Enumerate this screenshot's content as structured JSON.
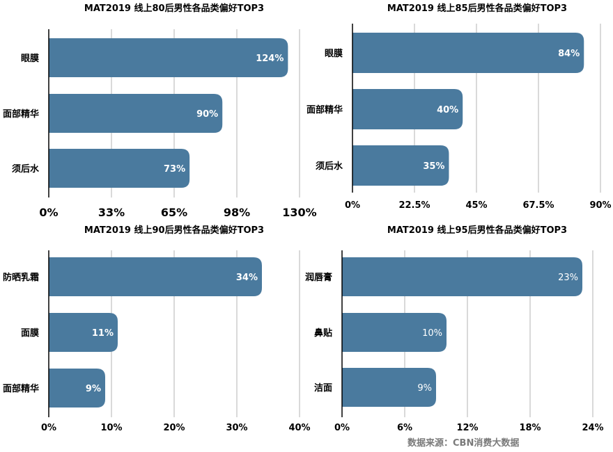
{
  "chart_data": [
    {
      "type": "bar",
      "orientation": "horizontal",
      "title": "MAT2019 线上80后男性各品类偏好TOP3",
      "categories": [
        "眼膜",
        "面部精华",
        "须后水"
      ],
      "values": [
        124,
        90,
        73
      ],
      "value_labels": [
        "124%",
        "90%",
        "73%"
      ],
      "xlim": [
        0,
        130
      ],
      "xticks": [
        "0%",
        "33%",
        "65%",
        "98%",
        "130%"
      ],
      "grid": true,
      "bar_color": "#4a7a9e"
    },
    {
      "type": "bar",
      "orientation": "horizontal",
      "title": "MAT2019 线上85后男性各品类偏好TOP3",
      "categories": [
        "眼膜",
        "面部精华",
        "须后水"
      ],
      "values": [
        84,
        40,
        35
      ],
      "value_labels": [
        "84%",
        "40%",
        "35%"
      ],
      "xlim": [
        0,
        90
      ],
      "xticks": [
        "0%",
        "22.5%",
        "45%",
        "67.5%",
        "90%"
      ],
      "grid": true,
      "bar_color": "#4a7a9e"
    },
    {
      "type": "bar",
      "orientation": "horizontal",
      "title": "MAT2019 线上90后男性各品类偏好TOP3",
      "categories": [
        "防晒乳霜",
        "面膜",
        "面部精华"
      ],
      "values": [
        34,
        11,
        9
      ],
      "value_labels": [
        "34%",
        "11%",
        "9%"
      ],
      "xlim": [
        0,
        40
      ],
      "xticks": [
        "0%",
        "10%",
        "20%",
        "30%",
        "40%"
      ],
      "grid": true,
      "bar_color": "#4a7a9e"
    },
    {
      "type": "bar",
      "orientation": "horizontal",
      "title": "MAT2019 线上95后男性各品类偏好TOP3",
      "categories": [
        "润唇膏",
        "鼻贴",
        "洁面"
      ],
      "values": [
        23,
        10,
        9
      ],
      "value_labels": [
        "23%",
        "10%",
        "9%"
      ],
      "xlim": [
        0,
        24
      ],
      "xticks": [
        "0%",
        "6%",
        "12%",
        "18%",
        "24%"
      ],
      "grid": true,
      "bar_color": "#4a7a9e"
    }
  ],
  "source": "数据来源：CBN消费大数据"
}
